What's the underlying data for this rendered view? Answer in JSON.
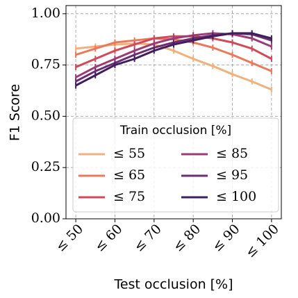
{
  "chart_data": {
    "type": "line",
    "x_label": "Test occlusion [%]",
    "y_label": "F1 Score",
    "x": [
      50,
      55,
      60,
      65,
      70,
      75,
      80,
      85,
      90,
      95,
      100
    ],
    "xlim": [
      47.5,
      102.5
    ],
    "xticks": [
      {
        "value": 50,
        "label": "≤ 50"
      },
      {
        "value": 60,
        "label": "≤ 60"
      },
      {
        "value": 70,
        "label": "≤ 70"
      },
      {
        "value": 80,
        "label": "≤ 80"
      },
      {
        "value": 90,
        "label": "≤ 90"
      },
      {
        "value": 100,
        "label": "≤ 100"
      }
    ],
    "ylim": [
      0,
      1.04
    ],
    "yticks": [
      {
        "value": 0,
        "label": "0.00"
      },
      {
        "value": 0.25,
        "label": "0.25"
      },
      {
        "value": 0.5,
        "label": "0.50"
      },
      {
        "value": 0.75,
        "label": "0.75"
      },
      {
        "value": 1,
        "label": "1.00"
      }
    ],
    "grid": true,
    "legend_title": "Train occlusion [%]",
    "legend_position": "lower center",
    "series": [
      {
        "name": "≤ 55",
        "color": "#f1b17c",
        "error": 0.015,
        "values": [
          0.83,
          0.84,
          0.85,
          0.855,
          0.85,
          0.82,
          0.78,
          0.745,
          0.705,
          0.67,
          0.63
        ]
      },
      {
        "name": "≤ 65",
        "color": "#e8795b",
        "error": 0.015,
        "values": [
          0.8,
          0.83,
          0.86,
          0.87,
          0.88,
          0.875,
          0.86,
          0.835,
          0.8,
          0.76,
          0.72
        ]
      },
      {
        "name": "≤ 75",
        "color": "#cf4a5a",
        "error": 0.015,
        "values": [
          0.74,
          0.78,
          0.82,
          0.85,
          0.88,
          0.89,
          0.89,
          0.88,
          0.86,
          0.83,
          0.78
        ]
      },
      {
        "name": "≤ 85",
        "color": "#9d3b78",
        "error": 0.015,
        "values": [
          0.69,
          0.74,
          0.78,
          0.82,
          0.855,
          0.88,
          0.895,
          0.905,
          0.9,
          0.88,
          0.84
        ]
      },
      {
        "name": "≤ 95",
        "color": "#6b2d74",
        "error": 0.015,
        "values": [
          0.67,
          0.72,
          0.76,
          0.8,
          0.835,
          0.86,
          0.88,
          0.895,
          0.905,
          0.9,
          0.87
        ]
      },
      {
        "name": "≤ 100",
        "color": "#3f1f5c",
        "error": 0.015,
        "values": [
          0.65,
          0.7,
          0.75,
          0.78,
          0.82,
          0.85,
          0.87,
          0.89,
          0.905,
          0.905,
          0.88
        ]
      }
    ]
  }
}
